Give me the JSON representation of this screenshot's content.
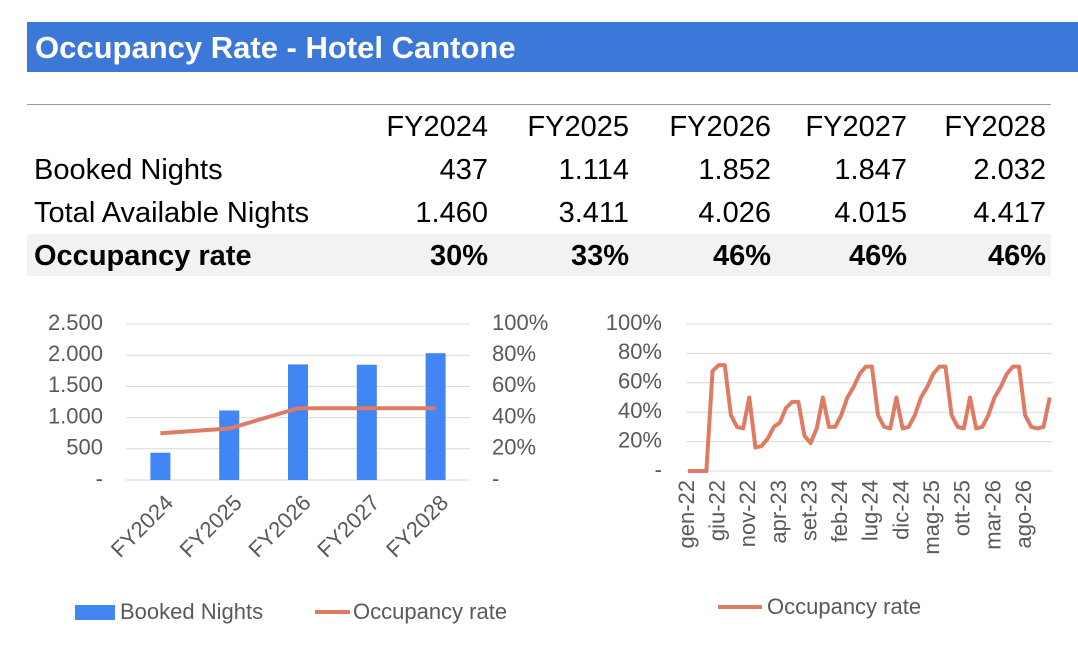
{
  "header": {
    "title": "Occupancy Rate - Hotel Cantone"
  },
  "table": {
    "columns": [
      "FY2024",
      "FY2025",
      "FY2026",
      "FY2027",
      "FY2028"
    ],
    "rows": [
      {
        "label": "Booked Nights",
        "cells": [
          "437",
          "1.114",
          "1.852",
          "1.847",
          "2.032"
        ]
      },
      {
        "label": "Total Available Nights",
        "cells": [
          "1.460",
          "3.411",
          "4.026",
          "4.015",
          "4.417"
        ]
      },
      {
        "label": "Occupancy rate",
        "cells": [
          "30%",
          "33%",
          "46%",
          "46%",
          "46%"
        ]
      }
    ]
  },
  "chart_data": [
    {
      "type": "combo",
      "categories": [
        "FY2024",
        "FY2025",
        "FY2026",
        "FY2027",
        "FY2028"
      ],
      "series": [
        {
          "name": "Booked Nights",
          "kind": "bar",
          "color": "#4285f4",
          "values": [
            437,
            1114,
            1852,
            1847,
            2032
          ]
        },
        {
          "name": "Occupancy rate",
          "kind": "line",
          "color": "#e07b63",
          "axis": "y2",
          "values": [
            30,
            33,
            46,
            46,
            46
          ]
        }
      ],
      "ylim": [
        0,
        2500
      ],
      "yticks": [
        {
          "value": 0,
          "label": "-"
        },
        500,
        {
          "value": 1000,
          "label": "1.000"
        },
        {
          "value": 1500,
          "label": "1.500"
        },
        {
          "value": 2000,
          "label": "2.000"
        },
        {
          "value": 2500,
          "label": "2.500"
        }
      ],
      "y2lim": [
        0,
        100
      ],
      "y2ticks": [
        {
          "value": 0,
          "label": "-"
        },
        {
          "value": 20,
          "label": "20%"
        },
        {
          "value": 40,
          "label": "40%"
        },
        {
          "value": 60,
          "label": "60%"
        },
        {
          "value": 80,
          "label": "80%"
        },
        {
          "value": 100,
          "label": "100%"
        }
      ],
      "grid": true,
      "legend": "bottom"
    },
    {
      "type": "line",
      "categories": [
        "gen-22",
        null,
        null,
        null,
        null,
        "giu-22",
        null,
        null,
        null,
        null,
        "nov-22",
        null,
        null,
        null,
        null,
        "apr-23",
        null,
        null,
        null,
        null,
        "set-23",
        null,
        null,
        null,
        null,
        "feb-24",
        null,
        null,
        null,
        null,
        "lug-24",
        null,
        null,
        null,
        null,
        "dic-24",
        null,
        null,
        null,
        null,
        "mag-25",
        null,
        null,
        null,
        null,
        "ott-25",
        null,
        null,
        null,
        null,
        "mar-26",
        null,
        null,
        null,
        null,
        "ago-26",
        null,
        null,
        null,
        null
      ],
      "series": [
        {
          "name": "Occupancy rate",
          "color": "#e07b63",
          "values": [
            0,
            0,
            0,
            0,
            68,
            72,
            72,
            38,
            30,
            29,
            50,
            16,
            17,
            22,
            30,
            33,
            43,
            47,
            47,
            24,
            19,
            29,
            50,
            30,
            30,
            38,
            50,
            57,
            66,
            71,
            71,
            38,
            30,
            29,
            50,
            29,
            30,
            38,
            50,
            57,
            66,
            71,
            71,
            38,
            30,
            29,
            50,
            29,
            30,
            38,
            50,
            57,
            66,
            71,
            71,
            38,
            30,
            29,
            30,
            50
          ]
        }
      ],
      "ylim": [
        0,
        100
      ],
      "yticks": [
        {
          "value": 0,
          "label": "-"
        },
        {
          "value": 20,
          "label": "20%"
        },
        {
          "value": 40,
          "label": "40%"
        },
        {
          "value": 60,
          "label": "60%"
        },
        {
          "value": 80,
          "label": "80%"
        },
        {
          "value": 100,
          "label": "100%"
        }
      ],
      "grid": true,
      "legend": "bottom"
    }
  ]
}
